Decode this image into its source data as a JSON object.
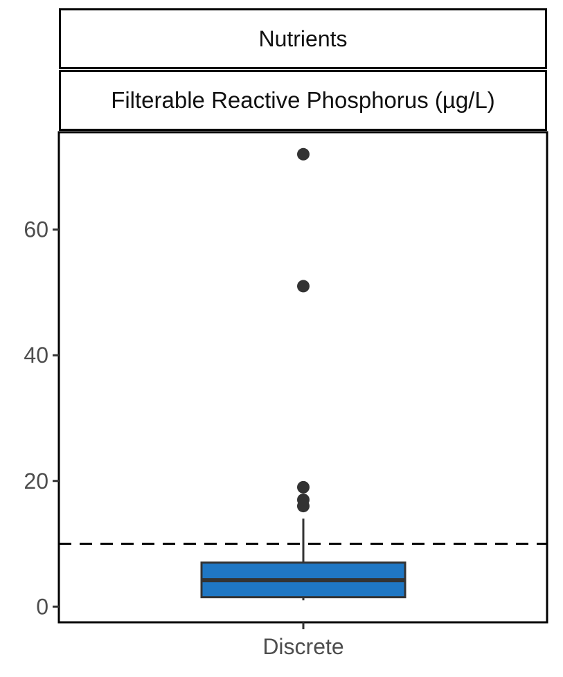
{
  "strips": {
    "top": "Nutrients",
    "sub": "Filterable Reactive Phosphorus (µg/L)"
  },
  "chart_data": {
    "type": "box",
    "title": "",
    "xlabel": "",
    "ylabel": "",
    "categories": [
      "Discrete"
    ],
    "ylim": [
      -2.5,
      75.5
    ],
    "yticks": [
      0,
      20,
      40,
      60
    ],
    "grid": false,
    "box": {
      "category": "Discrete",
      "whisker_low": 1,
      "q1": 1.5,
      "median": 4.2,
      "q3": 7,
      "whisker_high": 14,
      "outliers": [
        16,
        17,
        19,
        51,
        72
      ]
    },
    "reference_line": {
      "value": 10,
      "style": "dashed"
    },
    "colors": {
      "box_fill": "#1f77c4",
      "outline": "#333333",
      "reference": "#000000",
      "outlier": "#333333"
    }
  }
}
